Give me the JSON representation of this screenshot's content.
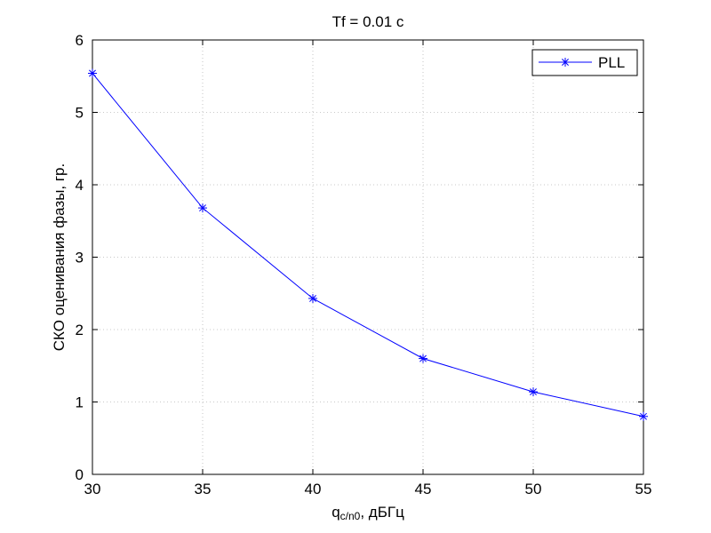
{
  "chart_data": {
    "type": "line",
    "title": "Tf = 0.01 с",
    "xlabel": {
      "main": "q",
      "subscript": "c/n0",
      "suffix": ", дБГц"
    },
    "ylabel": "СКО оценивания фазы, гр.",
    "xlim": [
      30,
      55
    ],
    "ylim": [
      0,
      6
    ],
    "xticks": [
      "30",
      "35",
      "40",
      "45",
      "50",
      "55"
    ],
    "yticks": [
      "0",
      "1",
      "2",
      "3",
      "4",
      "5",
      "6"
    ],
    "grid": true,
    "legend_position": "top-right",
    "series": [
      {
        "name": "PLL",
        "color": "#0000ff",
        "marker": "asterisk",
        "x": [
          30,
          35,
          40,
          45,
          50,
          55
        ],
        "y": [
          5.54,
          3.68,
          2.43,
          1.6,
          1.14,
          0.8
        ]
      }
    ]
  }
}
